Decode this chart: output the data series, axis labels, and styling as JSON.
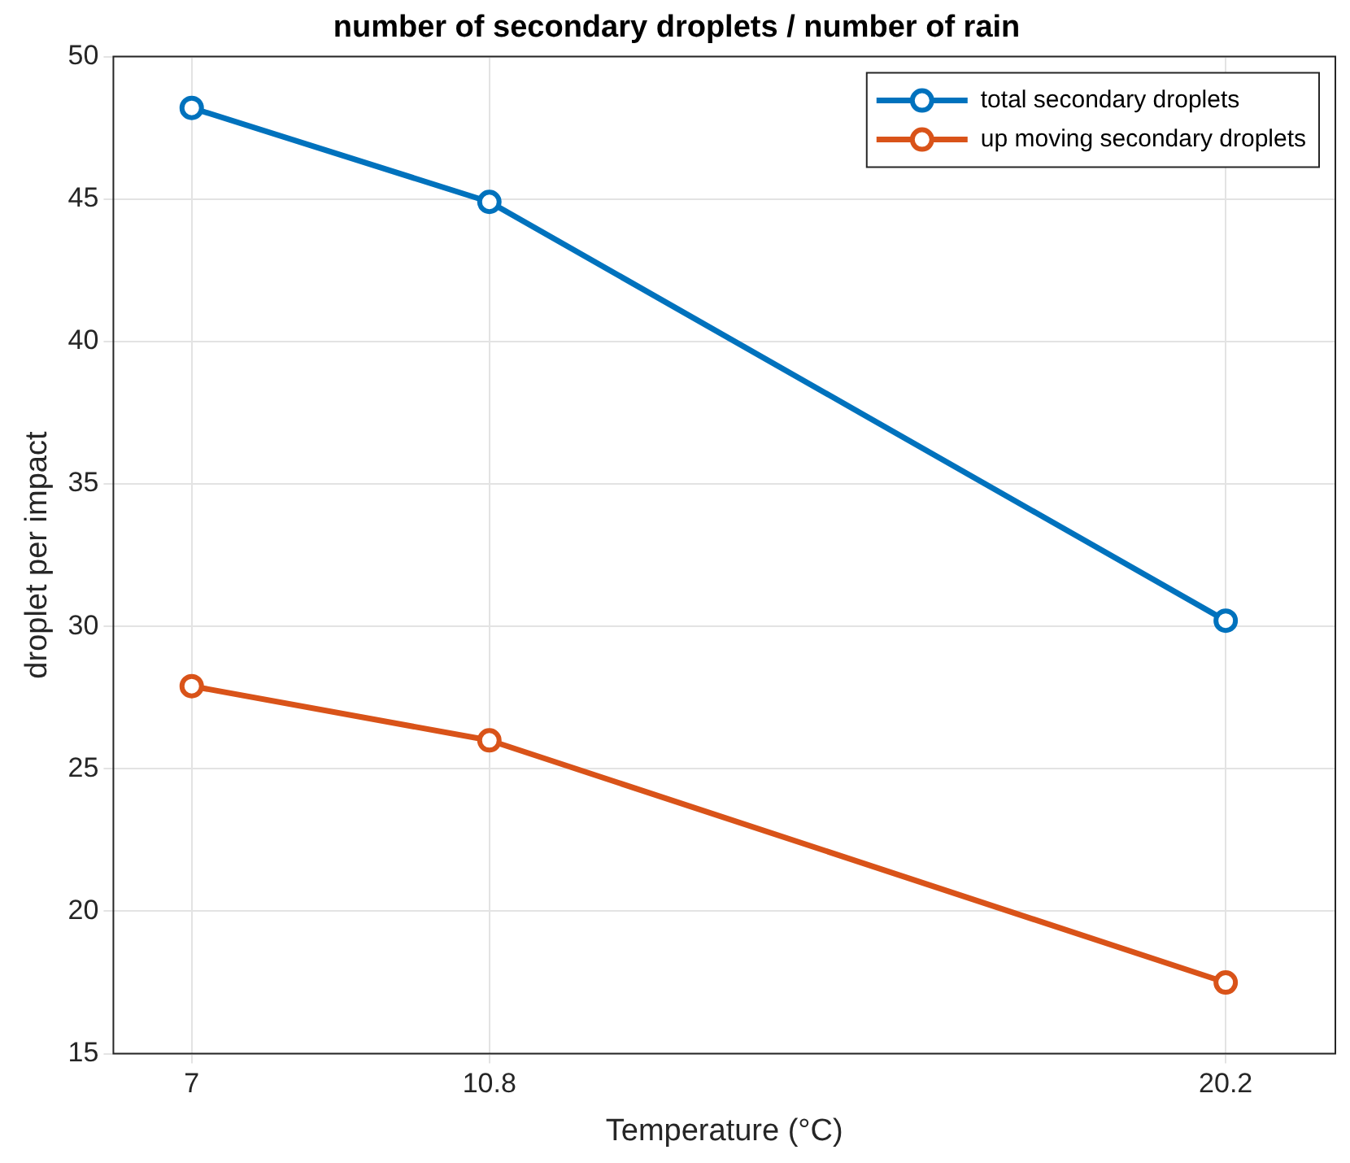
{
  "chart_data": {
    "type": "line",
    "title": "number of secondary droplets / number of rain",
    "xlabel": "Temperature (°C)",
    "ylabel": "droplet per impact",
    "x": [
      7,
      10.8,
      20.2
    ],
    "series": [
      {
        "name": "total secondary droplets",
        "color": "#0072bd",
        "values": [
          48.2,
          44.9,
          30.2
        ]
      },
      {
        "name": "up moving secondary droplets",
        "color": "#d95319",
        "values": [
          27.9,
          26.0,
          17.5
        ]
      }
    ],
    "xlim": [
      6,
      21.6
    ],
    "xticks": [
      7,
      10.8,
      20.2
    ],
    "ylim": [
      15,
      50
    ],
    "yticks": [
      15,
      20,
      25,
      30,
      35,
      40,
      45,
      50
    ],
    "grid": true,
    "legend": "top right",
    "marker": "circle",
    "line_style": "solid"
  }
}
